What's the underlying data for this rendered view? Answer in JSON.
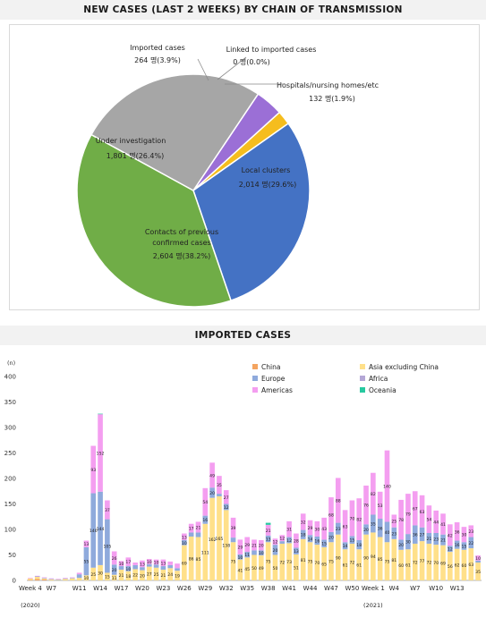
{
  "pie_header": "NEW CASES (LAST 2 WEEKS) BY CHAIN OF TRANSMISSION",
  "bar_header": "IMPORTED CASES",
  "chart_data": [
    {
      "type": "pie",
      "slices": [
        {
          "label": "Imported cases",
          "value": 264,
          "pct": 3.9,
          "value_text": "264 명(3.9%)",
          "color": "#9b6fd6"
        },
        {
          "label": "Linked to imported cases",
          "value": 0,
          "pct": 0.0,
          "value_text": "0 명(0.0%)",
          "color": "#e36c09"
        },
        {
          "label": "Hospitals/nursing homes/etc",
          "value": 132,
          "pct": 1.9,
          "value_text": "132 명(1.9%)",
          "color": "#f5bd1e"
        },
        {
          "label": "Local clusters",
          "value": 2014,
          "pct": 29.6,
          "value_text": "2,014 명(29.6%)",
          "color": "#4472c4"
        },
        {
          "label": "Contacts of previous confirmed cases",
          "label_lines": [
            "Contacts of previous",
            "confirmed cases"
          ],
          "value": 2604,
          "pct": 38.2,
          "value_text": "2,604 명(38.2%)",
          "color": "#70ad47"
        },
        {
          "label": "Under investigation",
          "value": 1801,
          "pct": 26.4,
          "value_text": "1,801 명(26.4%)",
          "color": "#a6a6a6"
        }
      ]
    },
    {
      "type": "bar",
      "stacked": true,
      "ylabel": "(n)",
      "ylim": [
        0,
        400
      ],
      "yticks": [
        0,
        50,
        100,
        150,
        200,
        250,
        300,
        350,
        400
      ],
      "xticks": [
        {
          "label": "Week 4",
          "week": 0
        },
        {
          "label": "W7",
          "week": 3
        },
        {
          "label": "W11",
          "week": 7
        },
        {
          "label": "W14",
          "week": 10
        },
        {
          "label": "W17",
          "week": 13
        },
        {
          "label": "W20",
          "week": 16
        },
        {
          "label": "W23",
          "week": 19
        },
        {
          "label": "W26",
          "week": 22
        },
        {
          "label": "W29",
          "week": 25
        },
        {
          "label": "W32",
          "week": 28
        },
        {
          "label": "W35",
          "week": 31
        },
        {
          "label": "W38",
          "week": 34
        },
        {
          "label": "W41",
          "week": 37
        },
        {
          "label": "W44",
          "week": 40
        },
        {
          "label": "W47",
          "week": 43
        },
        {
          "label": "W50",
          "week": 46
        },
        {
          "label": "Week 1",
          "week": 49
        },
        {
          "label": "W4",
          "week": 52
        },
        {
          "label": "W7",
          "week": 55
        },
        {
          "label": "W10",
          "week": 58
        },
        {
          "label": "W13",
          "week": 61
        }
      ],
      "year_labels": [
        {
          "label": "(2020)",
          "week": 0
        },
        {
          "label": "(2021)",
          "week": 49
        }
      ],
      "legend": [
        {
          "name": "China",
          "color": "#f4a460"
        },
        {
          "name": "Asia excluding China",
          "color": "#ffe08a"
        },
        {
          "name": "Europe",
          "color": "#8faadc"
        },
        {
          "name": "Africa",
          "color": "#b4a7d6"
        },
        {
          "name": "Americas",
          "color": "#f49ef0"
        },
        {
          "name": "Oceania",
          "color": "#27c9a0"
        }
      ],
      "series_order": [
        "China",
        "Asia excluding China",
        "Europe",
        "Africa",
        "Americas",
        "Oceania"
      ],
      "data": [
        [
          1,
          3,
          0,
          0,
          1,
          0
        ],
        [
          3,
          4,
          1,
          0,
          1,
          0
        ],
        [
          2,
          2,
          1,
          0,
          1,
          0
        ],
        [
          0,
          2,
          1,
          0,
          1,
          0
        ],
        [
          0,
          1,
          1,
          0,
          1,
          0
        ],
        [
          0,
          3,
          1,
          0,
          1,
          0
        ],
        [
          0,
          4,
          1,
          0,
          1,
          0
        ],
        [
          0,
          5,
          7,
          0,
          3,
          0
        ],
        [
          0,
          10,
          55,
          0,
          13,
          0
        ],
        [
          0,
          25,
          146,
          0,
          93,
          0
        ],
        [
          0,
          30,
          144,
          0,
          152,
          1
        ],
        [
          0,
          15,
          105,
          0,
          37,
          0
        ],
        [
          0,
          11,
          20,
          0,
          26,
          0
        ],
        [
          0,
          21,
          7,
          0,
          10,
          0
        ],
        [
          0,
          18,
          10,
          0,
          17,
          0
        ],
        [
          0,
          22,
          8,
          0,
          5,
          0
        ],
        [
          0,
          20,
          6,
          0,
          13,
          0
        ],
        [
          0,
          27,
          5,
          0,
          10,
          0
        ],
        [
          0,
          25,
          6,
          0,
          10,
          0
        ],
        [
          0,
          21,
          7,
          0,
          13,
          0
        ],
        [
          0,
          24,
          6,
          0,
          7,
          0
        ],
        [
          0,
          19,
          5,
          0,
          9,
          0
        ],
        [
          0,
          69,
          10,
          0,
          13,
          0
        ],
        [
          0,
          86,
          8,
          0,
          17,
          0
        ],
        [
          0,
          85,
          9,
          0,
          21,
          0
        ],
        [
          0,
          111,
          16,
          0,
          54,
          0
        ],
        [
          0,
          162,
          20,
          0,
          49,
          0
        ],
        [
          0,
          165,
          5,
          0,
          35,
          0
        ],
        [
          0,
          138,
          12,
          0,
          27,
          0
        ],
        [
          0,
          75,
          9,
          0,
          39,
          0
        ],
        [
          0,
          41,
          10,
          0,
          29,
          0
        ],
        [
          0,
          45,
          11,
          0,
          29,
          0
        ],
        [
          0,
          50,
          9,
          0,
          21,
          0
        ],
        [
          0,
          49,
          10,
          0,
          20,
          0
        ],
        [
          0,
          75,
          13,
          0,
          21,
          4
        ],
        [
          0,
          50,
          20,
          0,
          12,
          0
        ],
        [
          0,
          72,
          5,
          0,
          12,
          0
        ],
        [
          0,
          73,
          12,
          0,
          31,
          0
        ],
        [
          0,
          51,
          13,
          0,
          28,
          0
        ],
        [
          0,
          81,
          18,
          0,
          32,
          0
        ],
        [
          0,
          75,
          14,
          0,
          29,
          0
        ],
        [
          0,
          70,
          16,
          0,
          30,
          0
        ],
        [
          0,
          65,
          15,
          0,
          43,
          0
        ],
        [
          0,
          75,
          20,
          0,
          68,
          0
        ],
        [
          0,
          90,
          23,
          0,
          88,
          0
        ],
        [
          0,
          61,
          14,
          0,
          63,
          0
        ],
        [
          0,
          72,
          15,
          0,
          70,
          0
        ],
        [
          0,
          61,
          18,
          0,
          82,
          0
        ],
        [
          0,
          90,
          20,
          0,
          76,
          0
        ],
        [
          0,
          94,
          35,
          0,
          82,
          0
        ],
        [
          0,
          85,
          36,
          0,
          53,
          0
        ],
        [
          0,
          75,
          40,
          0,
          140,
          0
        ],
        [
          0,
          81,
          23,
          0,
          25,
          0
        ],
        [
          0,
          60,
          20,
          0,
          78,
          0
        ],
        [
          0,
          61,
          30,
          0,
          79,
          0
        ],
        [
          0,
          72,
          36,
          0,
          67,
          0
        ],
        [
          0,
          77,
          27,
          0,
          63,
          0
        ],
        [
          0,
          72,
          21,
          0,
          54,
          0
        ],
        [
          0,
          70,
          23,
          0,
          44,
          0
        ],
        [
          0,
          69,
          21,
          0,
          41,
          0
        ],
        [
          0,
          56,
          12,
          0,
          42,
          0
        ],
        [
          0,
          62,
          16,
          0,
          36,
          0
        ],
        [
          0,
          60,
          15,
          0,
          30,
          0
        ],
        [
          0,
          63,
          22,
          0,
          23,
          0
        ],
        [
          0,
          35,
          4,
          0,
          10,
          0
        ]
      ]
    }
  ]
}
